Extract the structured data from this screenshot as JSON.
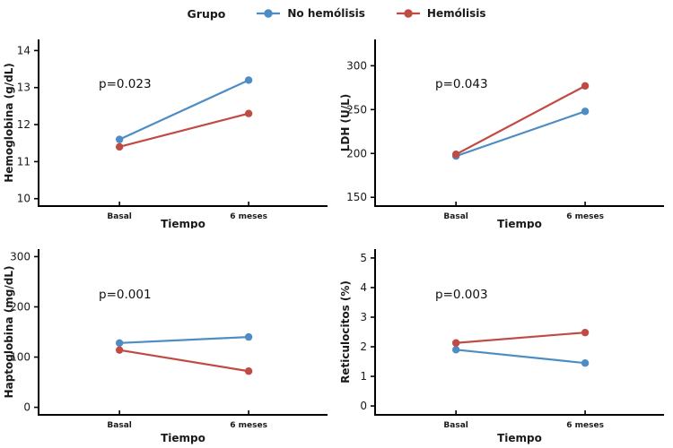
{
  "figure": {
    "background": "#ffffff",
    "axis_color": "#000000",
    "text_color": "#1a1a1a",
    "legend": {
      "title": "Grupo",
      "entries": [
        {
          "label": "No hemólisis",
          "color": "#4D8DC4"
        },
        {
          "label": "Hemólisis",
          "color": "#C04B44"
        }
      ]
    }
  },
  "chart_data": [
    {
      "type": "line",
      "title": "",
      "xlabel": "Tiempo",
      "ylabel": "Hemoglobina (g/dL)",
      "annotation": "p=0.023",
      "categories": [
        "Basal",
        "6 meses"
      ],
      "yticks": [
        10,
        11,
        12,
        13,
        14
      ],
      "ylim": [
        9.8,
        14.3
      ],
      "grid": false,
      "legend_position": "top",
      "series": [
        {
          "name": "No hemólisis",
          "color": "#4D8DC4",
          "values": [
            11.6,
            13.2
          ]
        },
        {
          "name": "Hemólisis",
          "color": "#C04B44",
          "values": [
            11.4,
            12.3
          ]
        }
      ]
    },
    {
      "type": "line",
      "title": "",
      "xlabel": "Tiempo",
      "ylabel": "LDH (U/L)",
      "annotation": "p=0.043",
      "categories": [
        "Basal",
        "6 meses"
      ],
      "yticks": [
        150,
        200,
        250,
        300
      ],
      "ylim": [
        140,
        330
      ],
      "grid": false,
      "legend_position": "top",
      "series": [
        {
          "name": "No hemólisis",
          "color": "#4D8DC4",
          "values": [
            197,
            248
          ]
        },
        {
          "name": "Hemólisis",
          "color": "#C04B44",
          "values": [
            199,
            277
          ]
        }
      ]
    },
    {
      "type": "line",
      "title": "",
      "xlabel": "Tiempo",
      "ylabel": "Haptoglobina (mg/dL)",
      "annotation": "p=0.001",
      "categories": [
        "Basal",
        "6 meses"
      ],
      "yticks": [
        0,
        100,
        200,
        300
      ],
      "ylim": [
        -15,
        315
      ],
      "grid": false,
      "legend_position": "top",
      "series": [
        {
          "name": "No hemólisis",
          "color": "#4D8DC4",
          "values": [
            128,
            140
          ]
        },
        {
          "name": "Hemólisis",
          "color": "#C04B44",
          "values": [
            114,
            72
          ]
        }
      ]
    },
    {
      "type": "line",
      "title": "",
      "xlabel": "Tiempo",
      "ylabel": "Reticulocitos (%)",
      "annotation": "p=0.003",
      "categories": [
        "Basal",
        "6 meses"
      ],
      "yticks": [
        0,
        1,
        2,
        3,
        4,
        5
      ],
      "ylim": [
        -0.3,
        5.3
      ],
      "grid": false,
      "legend_position": "top",
      "series": [
        {
          "name": "No hemólisis",
          "color": "#4D8DC4",
          "values": [
            1.9,
            1.45
          ]
        },
        {
          "name": "Hemólisis",
          "color": "#C04B44",
          "values": [
            2.13,
            2.48
          ]
        }
      ]
    }
  ]
}
